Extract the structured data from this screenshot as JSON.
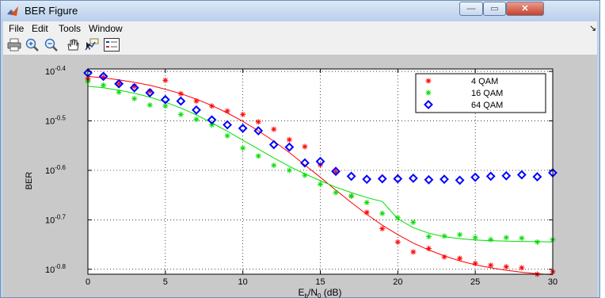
{
  "window": {
    "title": "BER Figure",
    "minimize": "—",
    "maximize": "▭",
    "close": "✕"
  },
  "menubar": {
    "items": [
      "File",
      "Edit",
      "Tools",
      "Window"
    ],
    "overflow": "↘"
  },
  "toolbar": {
    "icons": [
      "print-icon",
      "zoom-in-icon",
      "zoom-out-icon",
      "pan-icon",
      "data-cursor-icon",
      "legend-icon"
    ]
  },
  "colors": {
    "series_4qam": "#ff0000",
    "series_16qam": "#00dd00",
    "series_64qam": "#0000ff"
  },
  "chart_data": {
    "type": "scatter",
    "title": "",
    "xlabel_main": "E",
    "xlabel_sub1": "b",
    "xlabel_mid": "/N",
    "xlabel_sub2": "0",
    "xlabel_tail": " (dB)",
    "ylabel": "BER",
    "xlim": [
      0,
      30
    ],
    "ylim_log10": [
      -0.81,
      -0.395
    ],
    "y_scale": "log",
    "grid": true,
    "legend_position": "top-right",
    "xticks": [
      "0",
      "5",
      "10",
      "15",
      "20",
      "25",
      "30"
    ],
    "xtick_values": [
      0,
      5,
      10,
      15,
      20,
      25,
      30
    ],
    "yticks": [
      {
        "base": "10",
        "exp": "-0.4",
        "value": -0.4
      },
      {
        "base": "10",
        "exp": "-0.5",
        "value": -0.5
      },
      {
        "base": "10",
        "exp": "-0.6",
        "value": -0.6
      },
      {
        "base": "10",
        "exp": "-0.7",
        "value": -0.7
      },
      {
        "base": "10",
        "exp": "-0.8",
        "value": -0.8
      }
    ],
    "x": [
      0,
      1,
      2,
      3,
      4,
      5,
      6,
      7,
      8,
      9,
      10,
      11,
      12,
      13,
      14,
      15,
      16,
      17,
      18,
      19,
      20,
      21,
      22,
      23,
      24,
      25,
      26,
      27,
      28,
      29,
      30
    ],
    "series": [
      {
        "name": "4 QAM",
        "marker": "star",
        "log10_y": [
          -0.415,
          -0.412,
          -0.425,
          -0.43,
          -0.44,
          -0.418,
          -0.445,
          -0.46,
          -0.47,
          -0.48,
          -0.487,
          -0.502,
          -0.517,
          -0.538,
          -0.552,
          -0.589,
          -0.603,
          -0.652,
          -0.685,
          -0.718,
          -0.745,
          -0.765,
          -0.758,
          -0.775,
          -0.778,
          -0.788,
          -0.792,
          -0.795,
          -0.797,
          -0.81,
          -0.805
        ],
        "fit_log10_y": [
          -0.41,
          -0.413,
          -0.417,
          -0.422,
          -0.428,
          -0.436,
          -0.445,
          -0.456,
          -0.469,
          -0.484,
          -0.501,
          -0.52,
          -0.541,
          -0.564,
          -0.589,
          -0.614,
          -0.64,
          -0.665,
          -0.689,
          -0.711,
          -0.73,
          -0.747,
          -0.761,
          -0.773,
          -0.783,
          -0.791,
          -0.797,
          -0.802,
          -0.806,
          -0.809,
          -0.811
        ]
      },
      {
        "name": "16 QAM",
        "marker": "star",
        "log10_y": [
          -0.42,
          -0.428,
          -0.442,
          -0.455,
          -0.468,
          -0.47,
          -0.487,
          -0.497,
          -0.508,
          -0.53,
          -0.555,
          -0.571,
          -0.59,
          -0.6,
          -0.61,
          -0.628,
          -0.645,
          -0.652,
          -0.665,
          -0.687,
          -0.696,
          -0.705,
          -0.734,
          -0.733,
          -0.73,
          -0.736,
          -0.74,
          -0.736,
          -0.737,
          -0.745,
          -0.74
        ],
        "fit_log10_y": [
          -0.43,
          -0.433,
          -0.438,
          -0.444,
          -0.452,
          -0.462,
          -0.474,
          -0.488,
          -0.504,
          -0.521,
          -0.539,
          -0.557,
          -0.575,
          -0.592,
          -0.607,
          -0.621,
          -0.634,
          -0.645,
          -0.655,
          -0.663,
          -0.698,
          -0.716,
          -0.727,
          -0.734,
          -0.738,
          -0.741,
          -0.742,
          -0.743,
          -0.744,
          -0.744,
          -0.745
        ]
      },
      {
        "name": "64 QAM",
        "marker": "diamond",
        "log10_y": [
          -0.403,
          -0.41,
          -0.425,
          -0.433,
          -0.443,
          -0.457,
          -0.46,
          -0.478,
          -0.498,
          -0.508,
          -0.515,
          -0.52,
          -0.548,
          -0.553,
          -0.585,
          -0.582,
          -0.602,
          -0.612,
          -0.618,
          -0.617,
          -0.617,
          -0.616,
          -0.619,
          -0.618,
          -0.62,
          -0.614,
          -0.612,
          -0.611,
          -0.609,
          -0.613,
          -0.605
        ]
      }
    ]
  }
}
